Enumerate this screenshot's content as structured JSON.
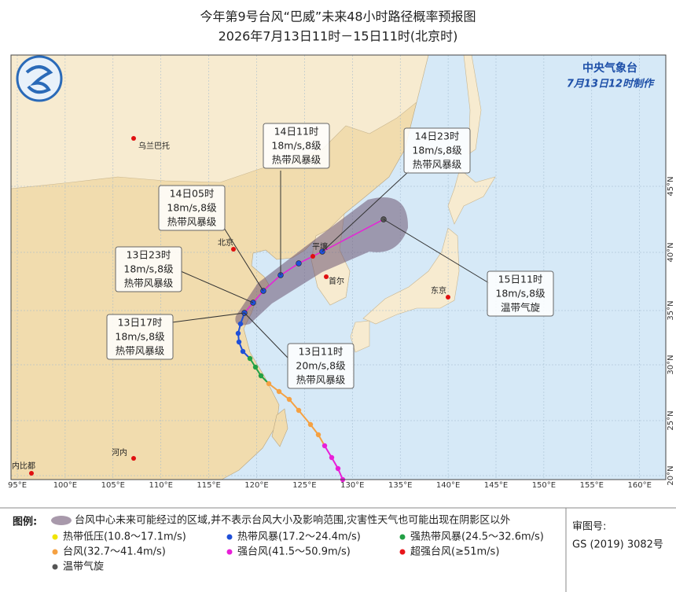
{
  "header": {
    "title": "今年第9号台风“巴威”未来48小时路径概率预报图",
    "subtitle": "2026年7月13日11时－15日11时(北京时)"
  },
  "agency": {
    "name": "中央气象台",
    "issued": "7月13日12时制作"
  },
  "cities": [
    "乌兰巴托",
    "北京",
    "平壤",
    "首尔",
    "东京",
    "河内",
    "内比都"
  ],
  "forecast_points": [
    {
      "time": "13日11时",
      "wind": "20m/s,8级",
      "level": "热带风暴级"
    },
    {
      "time": "13日17时",
      "wind": "18m/s,8级",
      "level": "热带风暴级"
    },
    {
      "time": "13日23时",
      "wind": "18m/s,8级",
      "level": "热带风暴级"
    },
    {
      "time": "14日05时",
      "wind": "18m/s,8级",
      "level": "热带风暴级"
    },
    {
      "time": "14日11时",
      "wind": "18m/s,8级",
      "level": "热带风暴级"
    },
    {
      "time": "14日23时",
      "wind": "18m/s,8级",
      "level": "热带风暴级"
    },
    {
      "time": "15日11时",
      "wind": "18m/s,8级",
      "level": "温带气旋"
    }
  ],
  "longitude_labels": [
    "95°E",
    "100°E",
    "105°E",
    "110°E",
    "115°E",
    "120°E",
    "125°E",
    "130°E",
    "135°E",
    "140°E",
    "145°E",
    "150°E",
    "155°E",
    "160°E"
  ],
  "latitude_labels": [
    "45°N",
    "40°N",
    "35°N",
    "30°N",
    "25°N",
    "20°N"
  ],
  "legend": {
    "title": "图例:",
    "cone": "台风中心未来可能经过的区域,并不表示台风大小及影响范围,灾害性天气也可能出现在阴影区以外",
    "items": [
      {
        "label": "热带低压(10.8～17.1m/s)",
        "color": "#f0e400"
      },
      {
        "label": "热带风暴(17.2～24.4m/s)",
        "color": "#1f4fd8"
      },
      {
        "label": "强热带风暴(24.5～32.6m/s)",
        "color": "#22a045"
      },
      {
        "label": "台风(32.7～41.4m/s)",
        "color": "#f5a142"
      },
      {
        "label": "强台风(41.5～50.9m/s)",
        "color": "#e81fd8"
      },
      {
        "label": "超强台风(≥51m/s)",
        "color": "#e8151b"
      },
      {
        "label": "温带气旋",
        "color": "#555555"
      }
    ]
  },
  "approval": {
    "label": "审图号:",
    "number": "GS (2019) 3082号"
  }
}
